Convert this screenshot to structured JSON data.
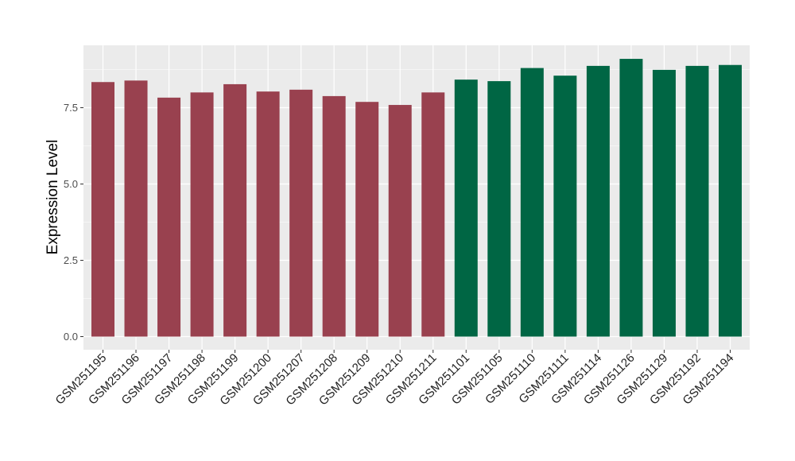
{
  "chart_data": {
    "type": "bar",
    "title": "",
    "xlabel": "",
    "ylabel": "Expression Level",
    "ylim": [
      0,
      9.5
    ],
    "yticks": [
      0.0,
      2.5,
      5.0,
      7.5
    ],
    "ytick_labels": [
      "0.0",
      "2.5",
      "5.0",
      "7.5"
    ],
    "grid": true,
    "legend": "none",
    "panel_color": "#ebebeb",
    "grid_color": "#ffffff",
    "groups": [
      {
        "color": "#99414f",
        "count": 11
      },
      {
        "color": "#006644",
        "count": 9
      }
    ],
    "categories": [
      "GSM251195",
      "GSM251196",
      "GSM251197",
      "GSM251198",
      "GSM251199",
      "GSM251200",
      "GSM251207",
      "GSM251208",
      "GSM251209",
      "GSM251210",
      "GSM251211",
      "GSM251101",
      "GSM251105",
      "GSM251110",
      "GSM251111",
      "GSM251114",
      "GSM251126",
      "GSM251129",
      "GSM251192",
      "GSM251194"
    ],
    "values": [
      8.34,
      8.39,
      7.83,
      8.0,
      8.27,
      8.03,
      8.09,
      7.88,
      7.69,
      7.59,
      8.0,
      8.42,
      8.37,
      8.8,
      8.55,
      8.87,
      9.1,
      8.74,
      8.87,
      8.9
    ]
  }
}
